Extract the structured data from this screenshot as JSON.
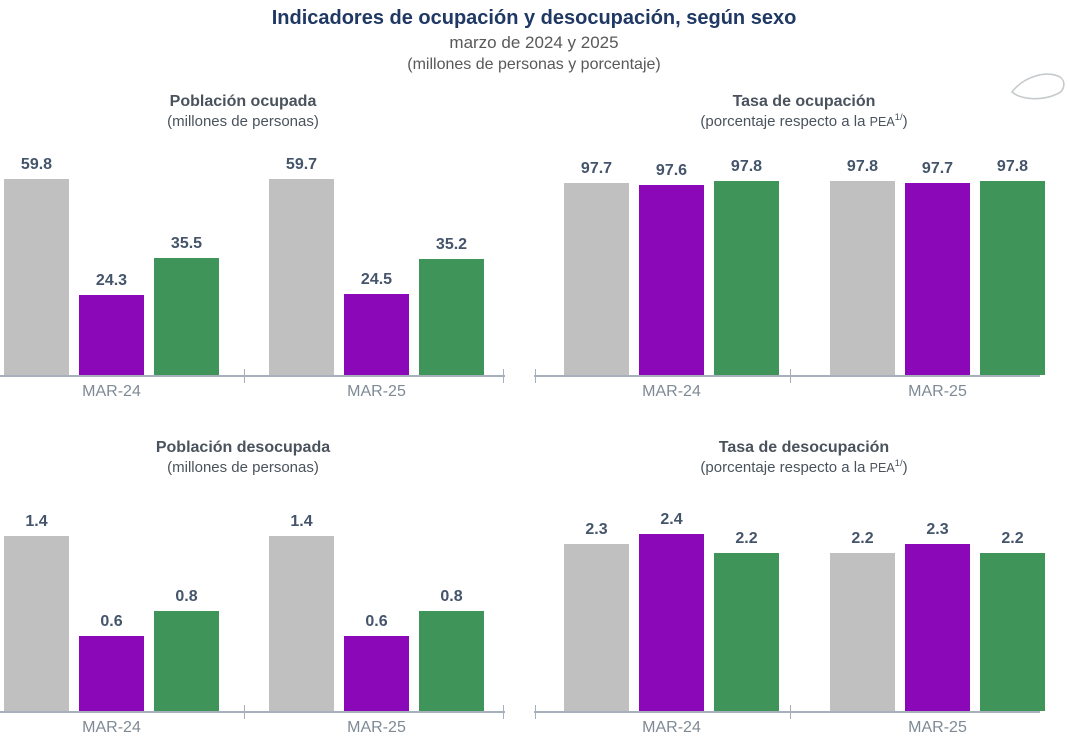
{
  "header": {
    "title": "Indicadores de ocupación y desocupación, según sexo",
    "subtitle": "marzo de 2024 y 2025",
    "note": "(millones de personas y porcentaje)"
  },
  "colors": {
    "bar_gray": "#C0C0C1",
    "bar_purple": "#8A08B8",
    "bar_green": "#3F9559",
    "title_navy": "#1F3864",
    "value_label": "#44546A",
    "category_label": "#7E8A95",
    "axis_line": "#A6B1BC",
    "chart_title_gray": "#4A535D"
  },
  "chart_data": [
    {
      "type": "bar",
      "title": "Población ocupada",
      "subtitle": "(millones de personas)",
      "categories": [
        "MAR-24",
        "MAR-25"
      ],
      "series": [
        {
          "color": "#C0C0C1",
          "values": [
            59.8,
            59.7
          ]
        },
        {
          "color": "#8A08B8",
          "values": [
            24.3,
            24.5
          ]
        },
        {
          "color": "#3F9559",
          "values": [
            35.5,
            35.2
          ]
        }
      ],
      "ylim": [
        0,
        70
      ],
      "grid": false,
      "legend": "none"
    },
    {
      "type": "bar",
      "title": "Tasa de ocupación",
      "subtitle_parts": {
        "prefix": "(porcentaje respecto a la ",
        "pea": "PEA",
        "sup": "1/",
        "suffix": ")"
      },
      "categories": [
        "MAR-24",
        "MAR-25"
      ],
      "series": [
        {
          "color": "#C0C0C1",
          "values": [
            97.7,
            97.8
          ]
        },
        {
          "color": "#8A08B8",
          "values": [
            97.6,
            97.7
          ]
        },
        {
          "color": "#3F9559",
          "values": [
            97.8,
            97.8
          ]
        }
      ],
      "ylim": [
        89.6,
        99.3
      ],
      "grid": false,
      "legend": "none"
    },
    {
      "type": "bar",
      "title": "Población desocupada",
      "subtitle": "(millones de personas)",
      "categories": [
        "MAR-24",
        "MAR-25"
      ],
      "series": [
        {
          "color": "#C0C0C1",
          "values": [
            1.4,
            1.4
          ]
        },
        {
          "color": "#8A08B8",
          "values": [
            0.6,
            0.6
          ]
        },
        {
          "color": "#3F9559",
          "values": [
            0.8,
            0.8
          ]
        }
      ],
      "ylim": [
        0,
        1.6
      ],
      "grid": false,
      "legend": "none"
    },
    {
      "type": "bar",
      "title": "Tasa de desocupación",
      "subtitle_parts": {
        "prefix": "(porcentaje respecto a la ",
        "pea": "PEA",
        "sup": "1/",
        "suffix": ")"
      },
      "categories": [
        "MAR-24",
        "MAR-25"
      ],
      "series": [
        {
          "color": "#C0C0C1",
          "values": [
            2.3,
            2.2
          ]
        },
        {
          "color": "#8A08B8",
          "values": [
            2.4,
            2.3
          ]
        },
        {
          "color": "#3F9559",
          "values": [
            2.2,
            2.2
          ]
        }
      ],
      "ylim": [
        0.5,
        2.65
      ],
      "grid": false,
      "legend": "none"
    }
  ]
}
